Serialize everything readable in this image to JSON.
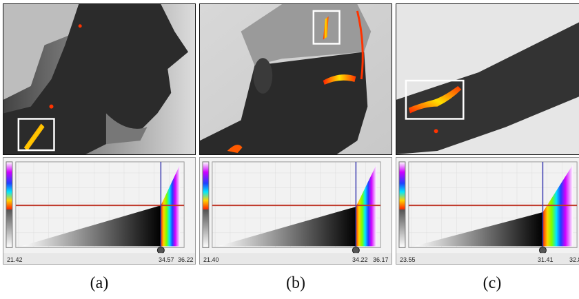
{
  "panels": [
    {
      "caption": "(a)",
      "min": "21.42",
      "threshold": "34.57",
      "max": "36.22"
    },
    {
      "caption": "(b)",
      "min": "21.40",
      "threshold": "34.22",
      "max": "36.17"
    },
    {
      "caption": "(c)",
      "min": "23.55",
      "threshold": "31.41",
      "max": "32.8"
    }
  ],
  "colors": {
    "threshold_line": "#c0392b",
    "marker_line": "#3b3bb0",
    "box": "#ffffff",
    "hot": "#ff5a00"
  }
}
